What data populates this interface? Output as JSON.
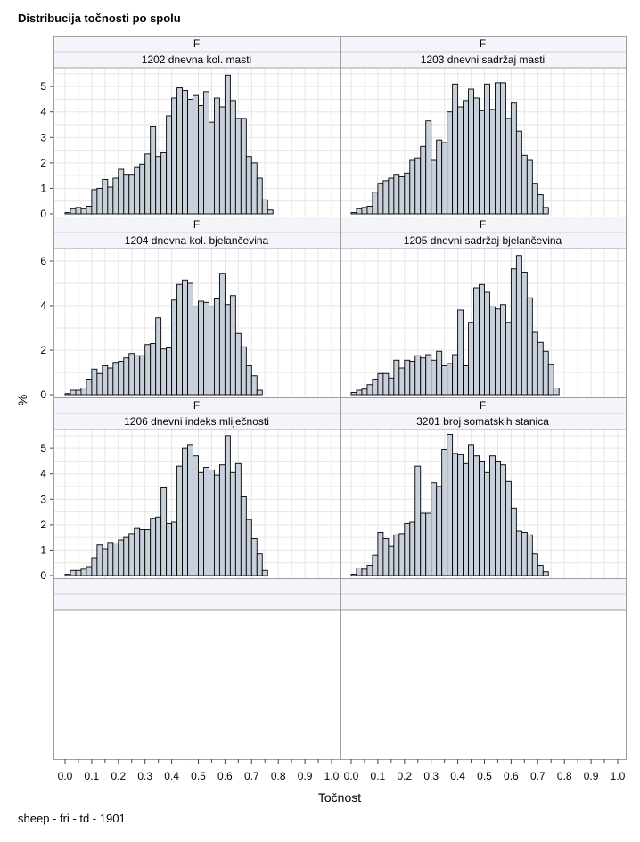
{
  "title": "Distribucija točnosti po spolu",
  "footnote": "sheep - fri - td - 1901",
  "chart_data": {
    "type": "bar",
    "subtype": "histogram-panel-grid",
    "xlabel": "Točnost",
    "ylabel": "%",
    "xlim": [
      0.0,
      1.0
    ],
    "xticks": [
      "0.0",
      "0.1",
      "0.2",
      "0.3",
      "0.4",
      "0.5",
      "0.6",
      "0.7",
      "0.8",
      "0.9",
      "1.0"
    ],
    "bin_width": 0.02,
    "bin_starts_first": 0.0,
    "grid": true,
    "colors": {
      "bar_fill": "#c8d0dc",
      "bar_stroke": "#000000",
      "header_fill": "#f4f5fa",
      "grid": "#e6e6e6",
      "frame": "#a0a0a0"
    },
    "panels": [
      {
        "group": "F",
        "label": "1202 dnevna kol. masti",
        "yticks": [
          "0",
          "1",
          "2",
          "3",
          "4",
          "5"
        ],
        "ylim": [
          0,
          5.6
        ],
        "values": [
          0.05,
          0.2,
          0.25,
          0.2,
          0.3,
          0.95,
          1.0,
          1.35,
          1.05,
          1.4,
          1.75,
          1.55,
          1.55,
          1.85,
          1.95,
          2.35,
          3.45,
          2.25,
          2.4,
          3.85,
          4.55,
          4.95,
          4.85,
          4.5,
          4.65,
          4.25,
          4.8,
          3.6,
          4.55,
          4.2,
          5.45,
          4.45,
          3.75,
          3.75,
          2.25,
          2.0,
          1.4,
          0.55,
          0.15
        ]
      },
      {
        "group": "F",
        "label": "1203 dnevni sadržaj masti",
        "yticks": [
          "0",
          "1",
          "2",
          "3",
          "4",
          "5"
        ],
        "ylim": [
          0,
          5.6
        ],
        "values": [
          0.05,
          0.2,
          0.25,
          0.3,
          0.85,
          1.2,
          1.3,
          1.4,
          1.55,
          1.45,
          1.6,
          2.1,
          2.2,
          2.65,
          3.65,
          2.1,
          2.9,
          2.8,
          4.0,
          5.1,
          4.2,
          4.45,
          4.9,
          4.55,
          4.05,
          5.1,
          4.1,
          5.15,
          5.15,
          3.75,
          4.35,
          3.25,
          2.3,
          2.1,
          1.2,
          0.75,
          0.25
        ]
      },
      {
        "group": "F",
        "label": "1204 dnevna kol. bjelančevina",
        "yticks": [
          "0",
          "2",
          "4",
          "6"
        ],
        "ylim": [
          0,
          6.4
        ],
        "values": [
          0.05,
          0.2,
          0.2,
          0.3,
          0.7,
          1.15,
          0.95,
          1.3,
          1.2,
          1.45,
          1.5,
          1.65,
          1.85,
          1.75,
          1.75,
          2.25,
          2.3,
          3.45,
          2.05,
          2.1,
          4.25,
          4.95,
          5.15,
          5.0,
          3.95,
          4.2,
          4.15,
          3.95,
          4.3,
          5.45,
          4.05,
          4.45,
          2.75,
          2.15,
          1.3,
          0.85,
          0.2
        ]
      },
      {
        "group": "F",
        "label": "1205 dnevni sadržaj bjelančevina",
        "yticks": [
          "0",
          "2",
          "4",
          "6"
        ],
        "ylim": [
          0,
          6.4
        ],
        "values": [
          0.1,
          0.2,
          0.25,
          0.45,
          0.7,
          0.95,
          0.95,
          0.75,
          1.55,
          1.2,
          1.55,
          1.5,
          1.75,
          1.65,
          1.8,
          1.55,
          1.95,
          1.3,
          1.4,
          1.8,
          3.8,
          1.3,
          3.25,
          4.8,
          4.95,
          4.6,
          3.95,
          3.85,
          4.05,
          3.25,
          5.65,
          6.25,
          5.5,
          4.35,
          2.8,
          2.35,
          1.95,
          1.35,
          0.3
        ]
      },
      {
        "group": "F",
        "label": "1206 dnevni indeks mliječnosti",
        "yticks": [
          "0",
          "1",
          "2",
          "3",
          "4",
          "5"
        ],
        "ylim": [
          0,
          5.6
        ],
        "values": [
          0.05,
          0.2,
          0.2,
          0.25,
          0.35,
          0.7,
          1.2,
          1.05,
          1.3,
          1.25,
          1.4,
          1.5,
          1.65,
          1.85,
          1.8,
          1.8,
          2.25,
          2.3,
          3.45,
          2.05,
          2.1,
          4.3,
          5.0,
          5.15,
          4.7,
          4.05,
          4.25,
          4.15,
          3.95,
          4.35,
          5.5,
          4.05,
          4.4,
          3.1,
          2.2,
          1.45,
          0.85,
          0.2
        ]
      },
      {
        "group": "F",
        "label": "3201 broj somatskih stanica",
        "yticks": [
          "0",
          "1",
          "2",
          "3",
          "4",
          "5"
        ],
        "ylim": [
          0,
          5.6
        ],
        "values": [
          0.05,
          0.3,
          0.25,
          0.4,
          0.8,
          1.7,
          1.45,
          1.15,
          1.6,
          1.65,
          2.05,
          2.1,
          4.3,
          2.45,
          2.45,
          3.65,
          3.5,
          4.95,
          5.55,
          4.8,
          4.75,
          4.4,
          5.15,
          4.7,
          4.5,
          4.05,
          4.7,
          4.5,
          4.35,
          3.7,
          2.65,
          1.75,
          1.7,
          1.6,
          0.85,
          0.4,
          0.15
        ]
      }
    ]
  }
}
